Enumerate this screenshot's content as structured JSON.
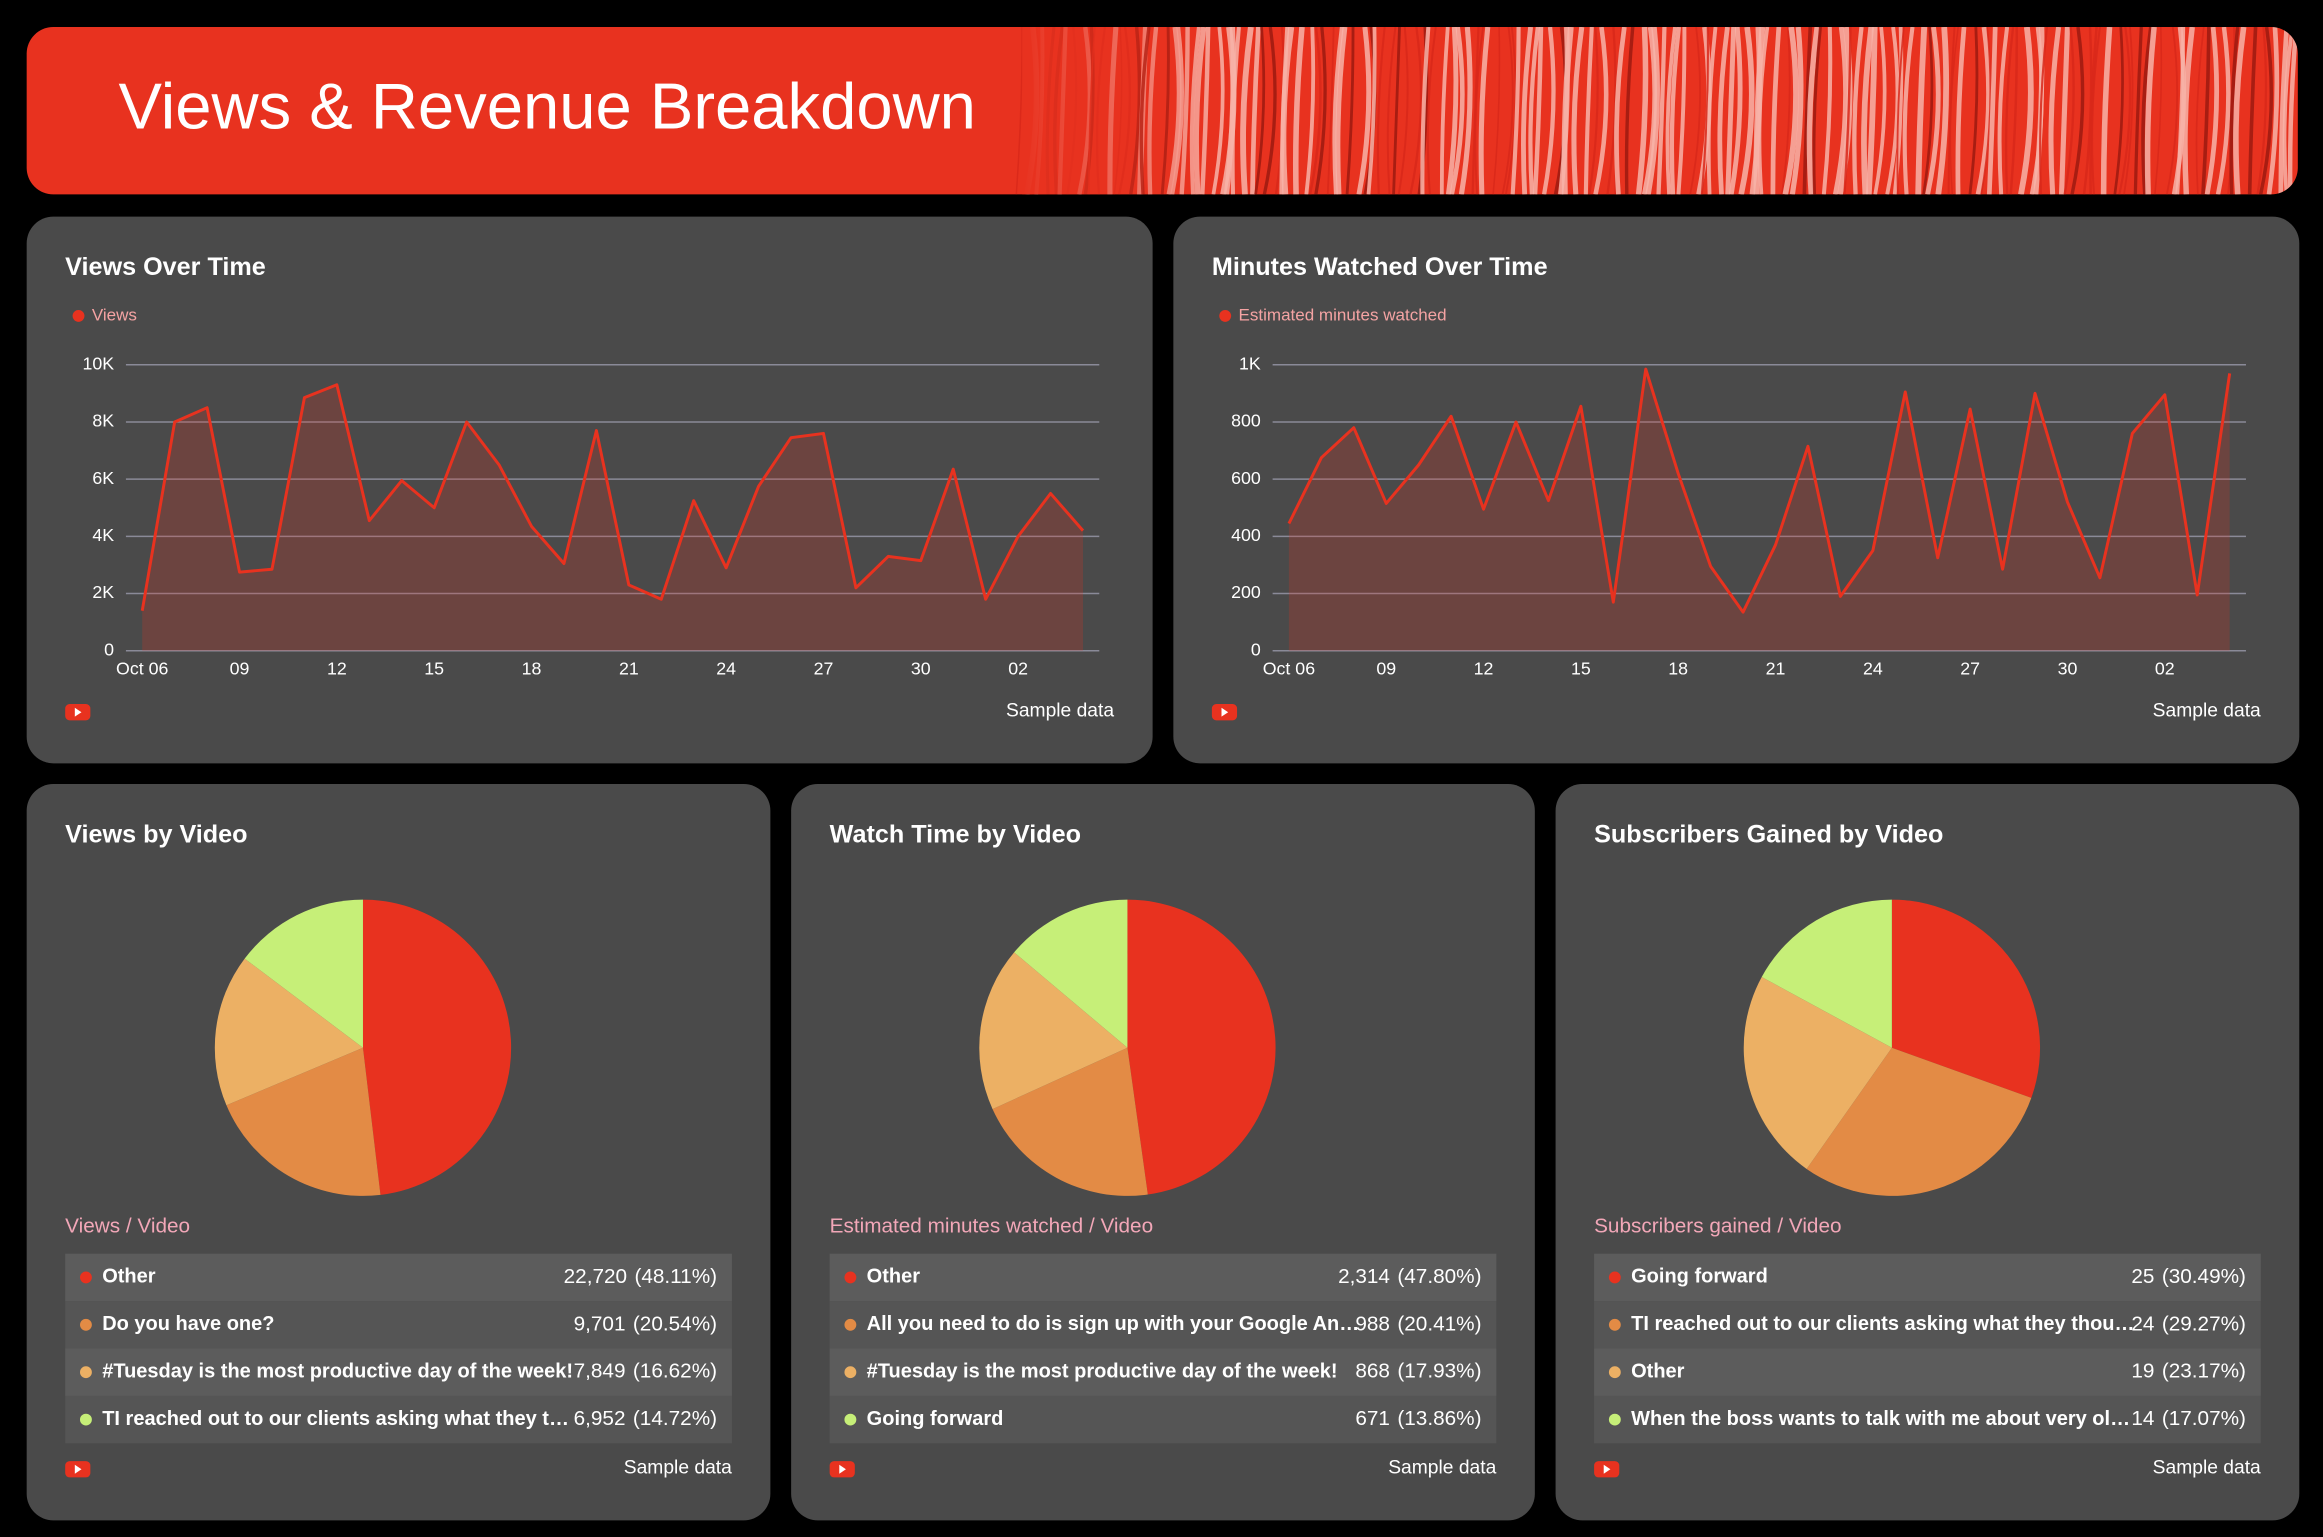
{
  "title": "Views & Revenue Breakdown",
  "chart_data": [
    {
      "type": "line",
      "title": "Views Over Time",
      "categories": [
        "Oct 06",
        null,
        null,
        "09",
        null,
        null,
        "12",
        null,
        null,
        "15",
        null,
        null,
        "18",
        null,
        null,
        "21",
        null,
        null,
        "24",
        null,
        null,
        "27",
        null,
        null,
        "30",
        null,
        null,
        "02",
        null,
        null
      ],
      "series": [
        {
          "name": "Views",
          "color": "#e8321f",
          "values": [
            1400,
            8000,
            8500,
            2750,
            2850,
            8850,
            9300,
            4550,
            5950,
            5000,
            8000,
            6500,
            4350,
            3050,
            7700,
            2300,
            1800,
            5250,
            2900,
            5750,
            7450,
            7600,
            2200,
            3300,
            3150,
            6350,
            1800,
            4000,
            5500,
            4200
          ]
        }
      ],
      "ylim": [
        0,
        10000
      ],
      "yticks": [
        0,
        {
          "value": 2000,
          "label": "2K"
        },
        {
          "value": 4000,
          "label": "4K"
        },
        {
          "value": 6000,
          "label": "6K"
        },
        {
          "value": 8000,
          "label": "8K"
        },
        {
          "value": 10000,
          "label": "10K"
        }
      ],
      "grid": true,
      "source": "Sample data"
    },
    {
      "type": "line",
      "title": "Minutes Watched Over Time",
      "categories": [
        "Oct 06",
        null,
        null,
        "09",
        null,
        null,
        "12",
        null,
        null,
        "15",
        null,
        null,
        "18",
        null,
        null,
        "21",
        null,
        null,
        "24",
        null,
        null,
        "27",
        null,
        null,
        "30",
        null,
        null,
        "02",
        null,
        null
      ],
      "series": [
        {
          "name": "Estimated minutes watched",
          "color": "#e8321f",
          "values": [
            445,
            675,
            780,
            515,
            650,
            820,
            495,
            800,
            525,
            855,
            170,
            985,
            620,
            295,
            135,
            370,
            715,
            190,
            350,
            905,
            325,
            845,
            285,
            900,
            520,
            255,
            760,
            895,
            195,
            970
          ]
        }
      ],
      "ylim": [
        0,
        1000
      ],
      "yticks": [
        0,
        200,
        400,
        600,
        800,
        {
          "value": 1000,
          "label": "1K"
        }
      ],
      "grid": true,
      "source": "Sample data"
    },
    {
      "type": "pie",
      "title": "Views by Video",
      "subtitle": "Views / Video",
      "categories": [
        "Other",
        "Do you have one?",
        "#Tuesday is the most productive day of the week!",
        "TI reached out to our clients asking what they t…"
      ],
      "colors": [
        "#e8321f",
        "#e38b45",
        "#ecb064",
        "#c6ef78"
      ],
      "values": [
        22720,
        9701,
        7849,
        6952
      ],
      "value_labels": [
        "22,720",
        "9,701",
        "7,849",
        "6,952"
      ],
      "shares": [
        48.11,
        20.54,
        16.62,
        14.72
      ],
      "share_labels": [
        "(48.11%)",
        "(20.54%)",
        "(16.62%)",
        "(14.72%)"
      ],
      "source": "Sample data"
    },
    {
      "type": "pie",
      "title": "Watch Time by Video",
      "subtitle": "Estimated minutes watched / Video",
      "categories": [
        "Other",
        "All you need to do is sign up with your Google An…",
        "#Tuesday is the most productive day of the week!",
        "Going forward"
      ],
      "colors": [
        "#e8321f",
        "#e38b45",
        "#ecb064",
        "#c6ef78"
      ],
      "values": [
        2314,
        988,
        868,
        671
      ],
      "value_labels": [
        "2,314",
        "988",
        "868",
        "671"
      ],
      "shares": [
        47.8,
        20.41,
        17.93,
        13.86
      ],
      "share_labels": [
        "(47.80%)",
        "(20.41%)",
        "(17.93%)",
        "(13.86%)"
      ],
      "source": "Sample data"
    },
    {
      "type": "pie",
      "title": "Subscribers Gained by Video",
      "subtitle": "Subscribers gained / Video",
      "categories": [
        "Going forward",
        "TI reached out to our clients asking what they thou…",
        "Other",
        "When the boss wants to talk with me about very ol…"
      ],
      "colors": [
        "#e8321f",
        "#e38b45",
        "#ecb064",
        "#c6ef78"
      ],
      "values": [
        25,
        24,
        19,
        14
      ],
      "shares": [
        30.49,
        29.27,
        23.17,
        17.07
      ],
      "share_labels": [
        "(30.49%)",
        "(29.27%)",
        "(23.17%)",
        "(17.07%)"
      ],
      "source": "Sample data"
    }
  ]
}
